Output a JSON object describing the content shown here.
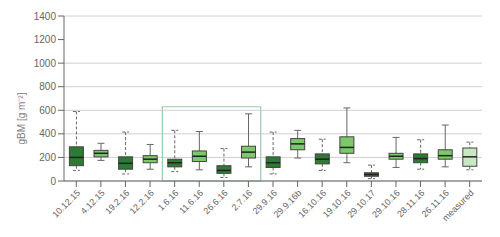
{
  "chart_data": {
    "type": "box",
    "ylabel": "gBM [g m⁻²]",
    "categories": [
      "10.12.15",
      "4.12.15",
      "19.2.16",
      "12.2.16",
      "1.6.16",
      "11.6.16",
      "26.6.16",
      "2.7.16",
      "29.9.16",
      "29.9.16b",
      "16.10.16",
      "19.10.16",
      "29.10.17",
      "29.10.16",
      "28.11.16",
      "26.11.16",
      "measured"
    ],
    "values": [
      {
        "med": 200,
        "q1": 130,
        "q3": 290,
        "whislo": 90,
        "whishi": 590
      },
      {
        "med": 235,
        "q1": 205,
        "q3": 260,
        "whislo": 175,
        "whishi": 320
      },
      {
        "med": 150,
        "q1": 100,
        "q3": 205,
        "whislo": 60,
        "whishi": 415
      },
      {
        "med": 185,
        "q1": 155,
        "q3": 215,
        "whislo": 100,
        "whishi": 310
      },
      {
        "med": 155,
        "q1": 120,
        "q3": 185,
        "whislo": 80,
        "whishi": 430
      },
      {
        "med": 210,
        "q1": 165,
        "q3": 255,
        "whislo": 95,
        "whishi": 420
      },
      {
        "med": 90,
        "q1": 65,
        "q3": 130,
        "whislo": 30,
        "whishi": 275
      },
      {
        "med": 245,
        "q1": 195,
        "q3": 295,
        "whislo": 120,
        "whishi": 570
      },
      {
        "med": 155,
        "q1": 115,
        "q3": 205,
        "whislo": 60,
        "whishi": 415
      },
      {
        "med": 315,
        "q1": 265,
        "q3": 360,
        "whislo": 195,
        "whishi": 430
      },
      {
        "med": 185,
        "q1": 145,
        "q3": 230,
        "whislo": 90,
        "whishi": 355
      },
      {
        "med": 285,
        "q1": 235,
        "q3": 375,
        "whislo": 155,
        "whishi": 620
      },
      {
        "med": 55,
        "q1": 40,
        "q3": 70,
        "whislo": 20,
        "whishi": 135
      },
      {
        "med": 210,
        "q1": 185,
        "q3": 235,
        "whislo": 115,
        "whishi": 370
      },
      {
        "med": 190,
        "q1": 155,
        "q3": 230,
        "whislo": 100,
        "whishi": 350
      },
      {
        "med": 215,
        "q1": 185,
        "q3": 265,
        "whislo": 120,
        "whishi": 475
      },
      {
        "med": 205,
        "q1": 125,
        "q3": 280,
        "whislo": 95,
        "whishi": 330
      }
    ],
    "colors": [
      "#2d7a32",
      "#7dc86a",
      "#2d7a32",
      "#7dc86a",
      "#2d7a32",
      "#7dc86a",
      "#2d7a32",
      "#7dc86a",
      "#2d7a32",
      "#7dc86a",
      "#2d7a32",
      "#7dc86a",
      "#2d7a32",
      "#7dc86a",
      "#2d7a32",
      "#7dc86a",
      "#c8e8c0"
    ],
    "region": {
      "first": "1.6.16",
      "last": "2.7.16",
      "top": 630,
      "color": "#99ccaa"
    },
    "ylim": [
      0,
      1400
    ],
    "yticks": [
      0,
      200,
      400,
      600,
      800,
      1000,
      1200,
      1400
    ],
    "grid": true
  }
}
